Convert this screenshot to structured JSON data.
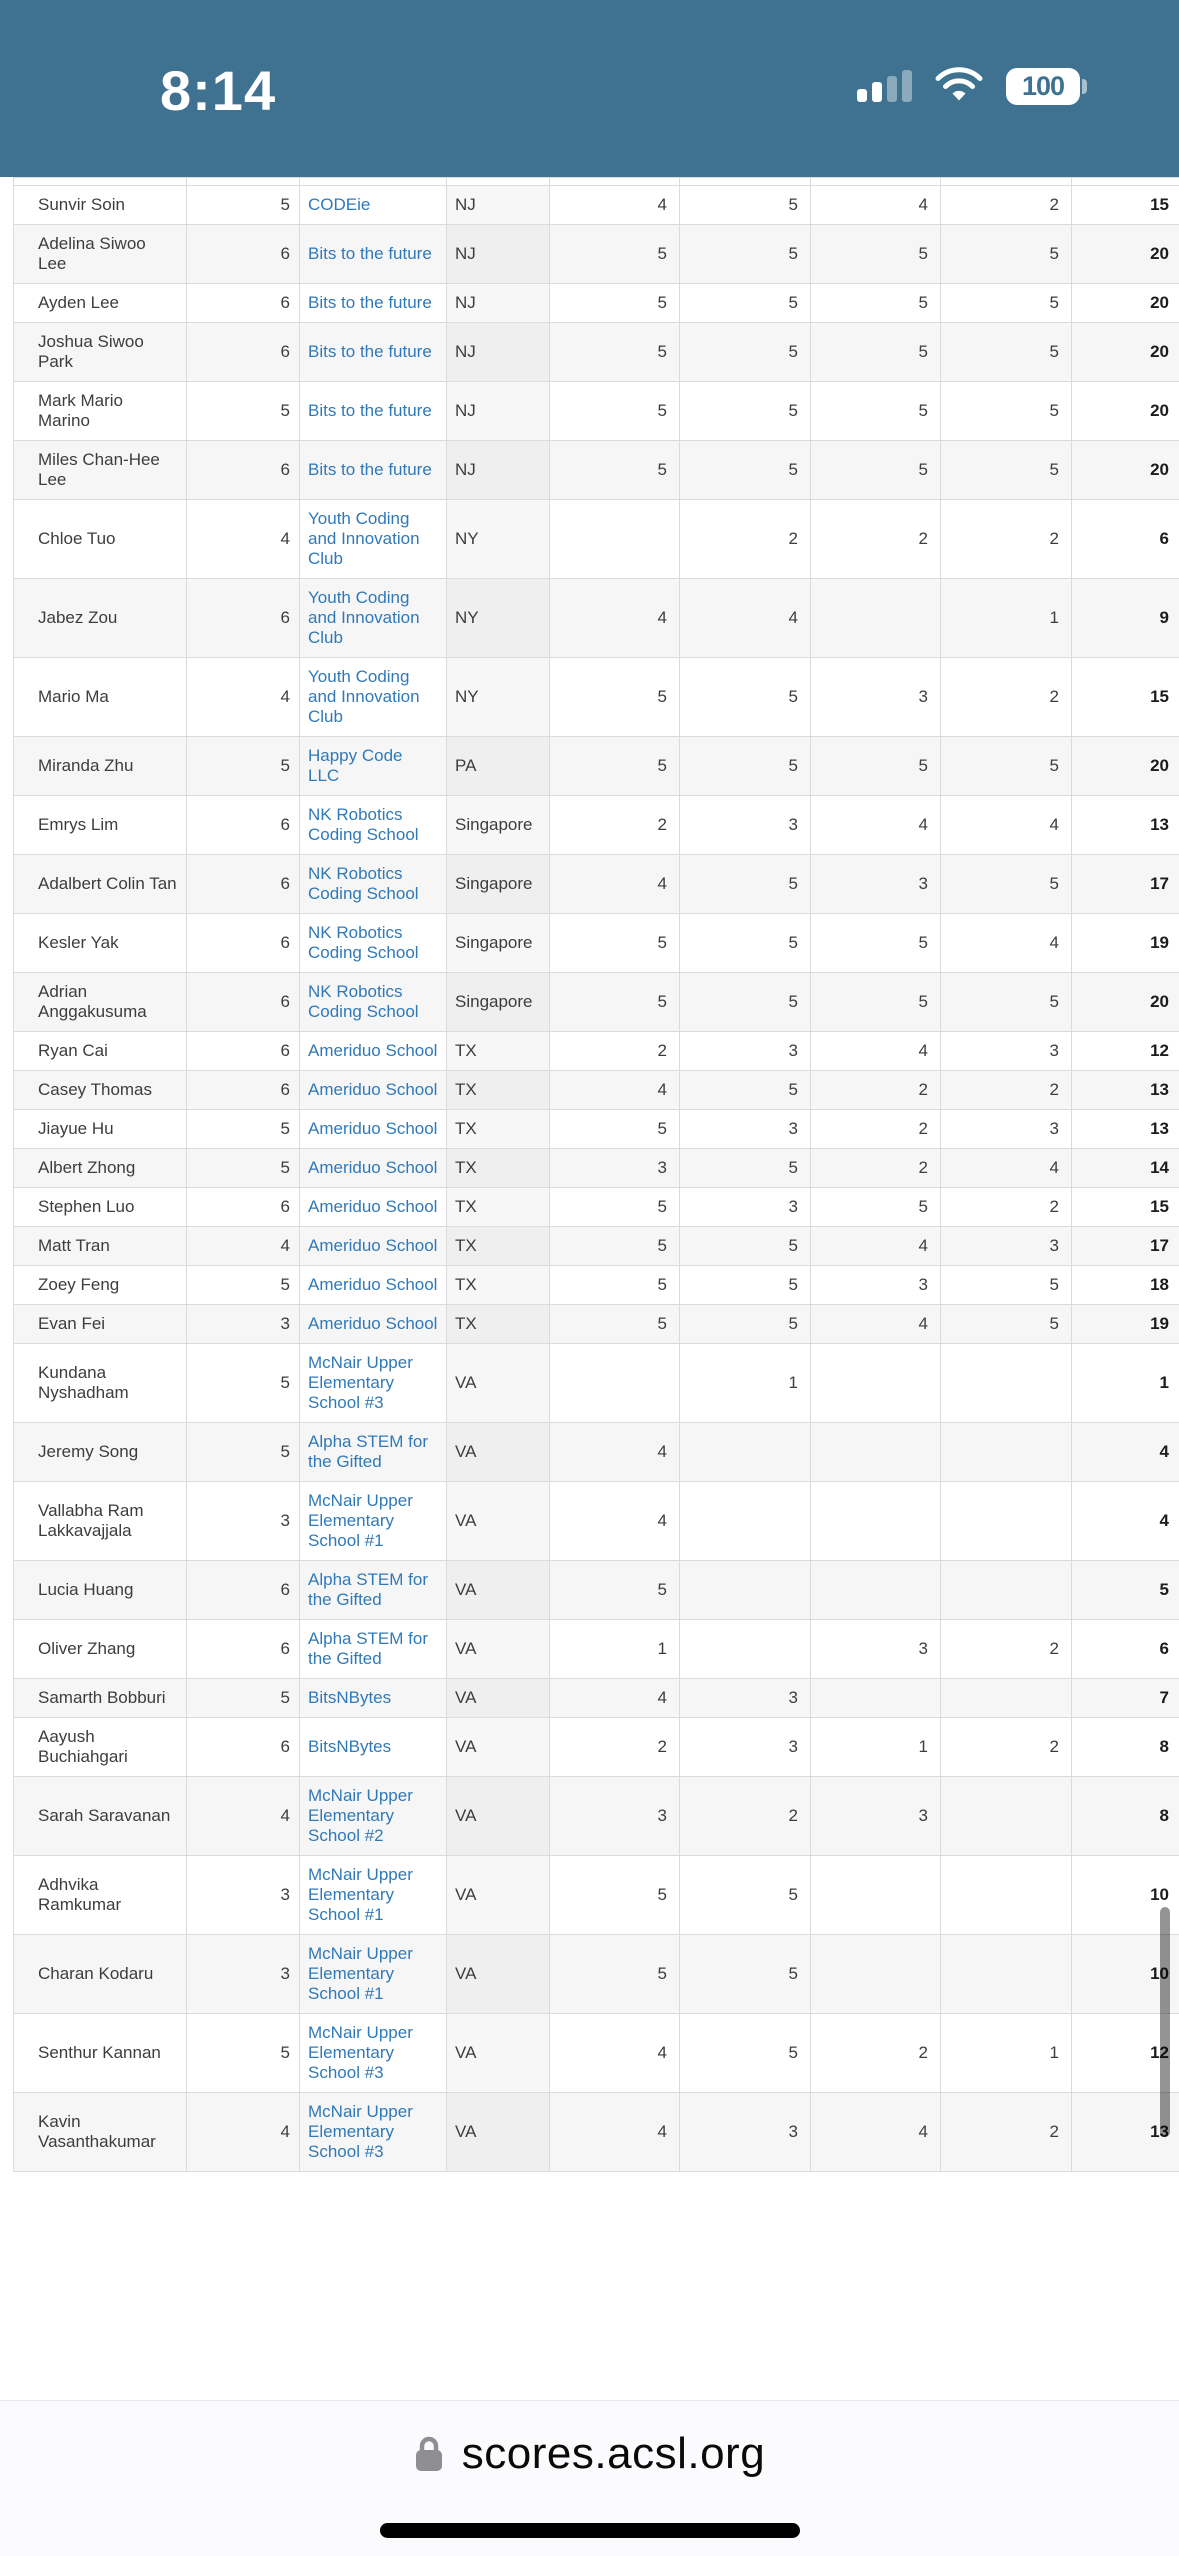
{
  "status_bar": {
    "time": "8:14",
    "battery_level": "100",
    "cellular_icon": "cellular-signal-icon",
    "wifi_icon": "wifi-icon",
    "battery_icon": "battery-icon"
  },
  "colors": {
    "status_bar_bg": "#3f7290",
    "link_blue": "#3079b8",
    "row_stripe": "#f6f6f7",
    "table_border": "#dbdbdb",
    "scrollbar": "rgba(0,0,0,0.42)"
  },
  "browser_bar": {
    "domain": "scores.acsl.org",
    "lock_icon": "lock-icon"
  },
  "table": {
    "rows": [
      {
        "name": "Sunvir Soin",
        "grade": "5",
        "school": "CODEie",
        "state": "NJ",
        "scores": [
          "4",
          "5",
          "4",
          "2"
        ],
        "total": "15"
      },
      {
        "name": "Adelina Siwoo Lee",
        "grade": "6",
        "school": "Bits to the future",
        "state": "NJ",
        "scores": [
          "5",
          "5",
          "5",
          "5"
        ],
        "total": "20"
      },
      {
        "name": "Ayden Lee",
        "grade": "6",
        "school": "Bits to the future",
        "state": "NJ",
        "scores": [
          "5",
          "5",
          "5",
          "5"
        ],
        "total": "20"
      },
      {
        "name": "Joshua Siwoo Park",
        "grade": "6",
        "school": "Bits to the future",
        "state": "NJ",
        "scores": [
          "5",
          "5",
          "5",
          "5"
        ],
        "total": "20"
      },
      {
        "name": "Mark Mario Marino",
        "grade": "5",
        "school": "Bits to the future",
        "state": "NJ",
        "scores": [
          "5",
          "5",
          "5",
          "5"
        ],
        "total": "20"
      },
      {
        "name": "Miles Chan-Hee Lee",
        "grade": "6",
        "school": "Bits to the future",
        "state": "NJ",
        "scores": [
          "5",
          "5",
          "5",
          "5"
        ],
        "total": "20"
      },
      {
        "name": "Chloe Tuo",
        "grade": "4",
        "school": "Youth Coding and Innovation Club",
        "state": "NY",
        "scores": [
          "",
          "2",
          "2",
          "2"
        ],
        "total": "6"
      },
      {
        "name": "Jabez Zou",
        "grade": "6",
        "school": "Youth Coding and Innovation Club",
        "state": "NY",
        "scores": [
          "4",
          "4",
          "",
          "1"
        ],
        "total": "9"
      },
      {
        "name": "Mario Ma",
        "grade": "4",
        "school": "Youth Coding and Innovation Club",
        "state": "NY",
        "scores": [
          "5",
          "5",
          "3",
          "2"
        ],
        "total": "15"
      },
      {
        "name": "Miranda Zhu",
        "grade": "5",
        "school": "Happy Code LLC",
        "state": "PA",
        "scores": [
          "5",
          "5",
          "5",
          "5"
        ],
        "total": "20"
      },
      {
        "name": "Emrys Lim",
        "grade": "6",
        "school": "NK Robotics Coding School",
        "state": "Singapore",
        "scores": [
          "2",
          "3",
          "4",
          "4"
        ],
        "total": "13"
      },
      {
        "name": "Adalbert Colin Tan",
        "grade": "6",
        "school": "NK Robotics Coding School",
        "state": "Singapore",
        "scores": [
          "4",
          "5",
          "3",
          "5"
        ],
        "total": "17"
      },
      {
        "name": "Kesler Yak",
        "grade": "6",
        "school": "NK Robotics Coding School",
        "state": "Singapore",
        "scores": [
          "5",
          "5",
          "5",
          "4"
        ],
        "total": "19"
      },
      {
        "name": "Adrian Anggakusuma",
        "grade": "6",
        "school": "NK Robotics Coding School",
        "state": "Singapore",
        "scores": [
          "5",
          "5",
          "5",
          "5"
        ],
        "total": "20"
      },
      {
        "name": "Ryan Cai",
        "grade": "6",
        "school": "Ameriduo School",
        "state": "TX",
        "scores": [
          "2",
          "3",
          "4",
          "3"
        ],
        "total": "12"
      },
      {
        "name": "Casey Thomas",
        "grade": "6",
        "school": "Ameriduo School",
        "state": "TX",
        "scores": [
          "4",
          "5",
          "2",
          "2"
        ],
        "total": "13"
      },
      {
        "name": "Jiayue Hu",
        "grade": "5",
        "school": "Ameriduo School",
        "state": "TX",
        "scores": [
          "5",
          "3",
          "2",
          "3"
        ],
        "total": "13"
      },
      {
        "name": "Albert Zhong",
        "grade": "5",
        "school": "Ameriduo School",
        "state": "TX",
        "scores": [
          "3",
          "5",
          "2",
          "4"
        ],
        "total": "14"
      },
      {
        "name": "Stephen Luo",
        "grade": "6",
        "school": "Ameriduo School",
        "state": "TX",
        "scores": [
          "5",
          "3",
          "5",
          "2"
        ],
        "total": "15"
      },
      {
        "name": "Matt Tran",
        "grade": "4",
        "school": "Ameriduo School",
        "state": "TX",
        "scores": [
          "5",
          "5",
          "4",
          "3"
        ],
        "total": "17"
      },
      {
        "name": "Zoey Feng",
        "grade": "5",
        "school": "Ameriduo School",
        "state": "TX",
        "scores": [
          "5",
          "5",
          "3",
          "5"
        ],
        "total": "18"
      },
      {
        "name": "Evan Fei",
        "grade": "3",
        "school": "Ameriduo School",
        "state": "TX",
        "scores": [
          "5",
          "5",
          "4",
          "5"
        ],
        "total": "19"
      },
      {
        "name": "Kundana Nyshadham",
        "grade": "5",
        "school": "McNair Upper Elementary School #3",
        "state": "VA",
        "scores": [
          "",
          "1",
          "",
          ""
        ],
        "total": "1"
      },
      {
        "name": "Jeremy Song",
        "grade": "5",
        "school": "Alpha STEM for the Gifted",
        "state": "VA",
        "scores": [
          "4",
          "",
          "",
          ""
        ],
        "total": "4"
      },
      {
        "name": "Vallabha Ram Lakkavajjala",
        "grade": "3",
        "school": "McNair Upper Elementary School #1",
        "state": "VA",
        "scores": [
          "4",
          "",
          "",
          ""
        ],
        "total": "4"
      },
      {
        "name": "Lucia Huang",
        "grade": "6",
        "school": "Alpha STEM for the Gifted",
        "state": "VA",
        "scores": [
          "5",
          "",
          "",
          ""
        ],
        "total": "5"
      },
      {
        "name": "Oliver Zhang",
        "grade": "6",
        "school": "Alpha STEM for the Gifted",
        "state": "VA",
        "scores": [
          "1",
          "",
          "3",
          "2"
        ],
        "total": "6"
      },
      {
        "name": "Samarth Bobburi",
        "grade": "5",
        "school": "BitsNBytes",
        "state": "VA",
        "scores": [
          "4",
          "3",
          "",
          ""
        ],
        "total": "7"
      },
      {
        "name": "Aayush Buchiahgari",
        "grade": "6",
        "school": "BitsNBytes",
        "state": "VA",
        "scores": [
          "2",
          "3",
          "1",
          "2"
        ],
        "total": "8"
      },
      {
        "name": "Sarah Saravanan",
        "grade": "4",
        "school": "McNair Upper Elementary School #2",
        "state": "VA",
        "scores": [
          "3",
          "2",
          "3",
          ""
        ],
        "total": "8"
      },
      {
        "name": "Adhvika Ramkumar",
        "grade": "3",
        "school": "McNair Upper Elementary School #1",
        "state": "VA",
        "scores": [
          "5",
          "5",
          "",
          ""
        ],
        "total": "10"
      },
      {
        "name": "Charan Kodaru",
        "grade": "3",
        "school": "McNair Upper Elementary School #1",
        "state": "VA",
        "scores": [
          "5",
          "5",
          "",
          ""
        ],
        "total": "10"
      },
      {
        "name": "Senthur Kannan",
        "grade": "5",
        "school": "McNair Upper Elementary School #3",
        "state": "VA",
        "scores": [
          "4",
          "5",
          "2",
          "1"
        ],
        "total": "12"
      },
      {
        "name": "Kavin Vasanthakumar",
        "grade": "4",
        "school": "McNair Upper Elementary School #3",
        "state": "VA",
        "scores": [
          "4",
          "3",
          "4",
          "2"
        ],
        "total": "13"
      }
    ]
  }
}
